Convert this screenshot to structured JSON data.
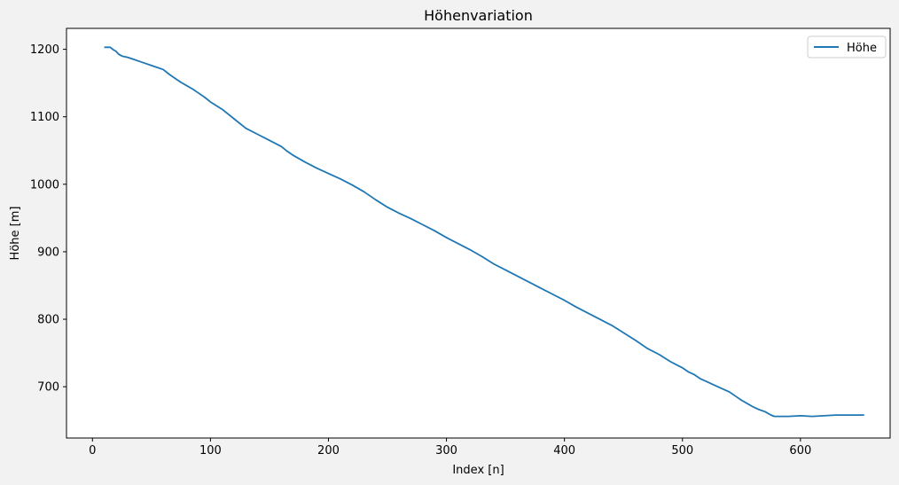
{
  "chart_data": {
    "type": "line",
    "title": "Höhenvariation",
    "xlabel": "Index [n]",
    "ylabel": "Höhe [m]",
    "xlim": [
      -22,
      676
    ],
    "ylim": [
      624,
      1231
    ],
    "xticks": [
      0,
      100,
      200,
      300,
      400,
      500,
      600
    ],
    "yticks": [
      700,
      800,
      900,
      1000,
      1100,
      1200
    ],
    "grid": false,
    "legend_position": "top-right",
    "series": [
      {
        "name": "Höhe",
        "color": "#1f77b4",
        "x": [
          10,
          15,
          18,
          20,
          22,
          25,
          30,
          35,
          40,
          45,
          50,
          55,
          60,
          65,
          70,
          75,
          80,
          85,
          90,
          95,
          100,
          110,
          120,
          130,
          140,
          150,
          160,
          165,
          170,
          180,
          190,
          200,
          210,
          220,
          230,
          240,
          250,
          260,
          270,
          280,
          290,
          300,
          310,
          320,
          330,
          340,
          350,
          360,
          370,
          380,
          390,
          400,
          410,
          420,
          430,
          440,
          450,
          460,
          470,
          480,
          490,
          500,
          505,
          510,
          515,
          520,
          530,
          540,
          545,
          550,
          555,
          560,
          565,
          570,
          575,
          578,
          580,
          590,
          600,
          610,
          620,
          630,
          640,
          654
        ],
        "y": [
          1203,
          1203,
          1199,
          1197,
          1193,
          1190,
          1188,
          1185,
          1182,
          1179,
          1176,
          1173,
          1170,
          1163,
          1157,
          1151,
          1146,
          1141,
          1135,
          1129,
          1122,
          1111,
          1097,
          1083,
          1074,
          1065,
          1056,
          1049,
          1043,
          1033,
          1024,
          1016,
          1008,
          999,
          989,
          977,
          966,
          957,
          949,
          940,
          931,
          921,
          912,
          903,
          893,
          882,
          873,
          864,
          855,
          846,
          837,
          828,
          818,
          809,
          800,
          791,
          780,
          769,
          757,
          748,
          737,
          728,
          722,
          718,
          712,
          708,
          700,
          692,
          686,
          680,
          675,
          670,
          666,
          663,
          658,
          656,
          656,
          656,
          657,
          656,
          657,
          658,
          658,
          658
        ]
      }
    ]
  }
}
